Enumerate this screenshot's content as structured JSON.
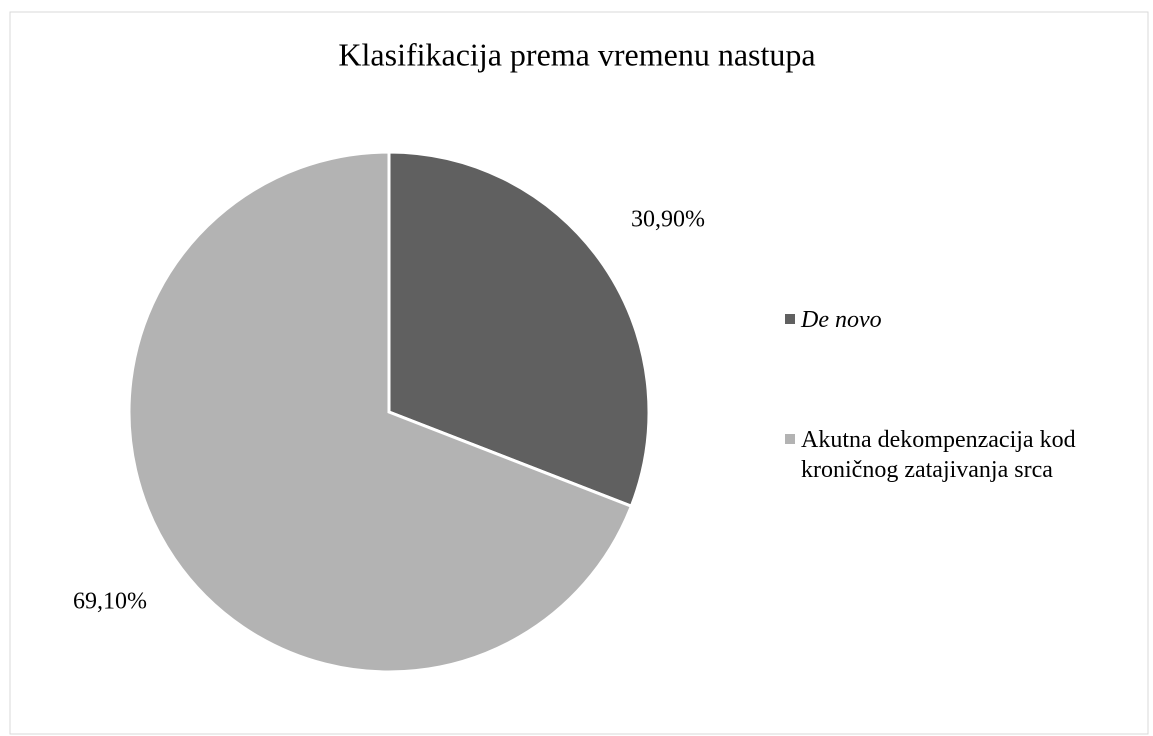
{
  "chart_data": {
    "type": "pie",
    "title": "Klasifikacija prema vremenu nastupa",
    "categories": [
      "De novo",
      "Akutna dekompenzacija kod kroničnog zatajivanja srca"
    ],
    "values": [
      30.9,
      69.1
    ],
    "value_labels": [
      "30,90%",
      "69,10%"
    ],
    "colors": [
      "#606060",
      "#b3b3b3"
    ],
    "legend": "right"
  }
}
